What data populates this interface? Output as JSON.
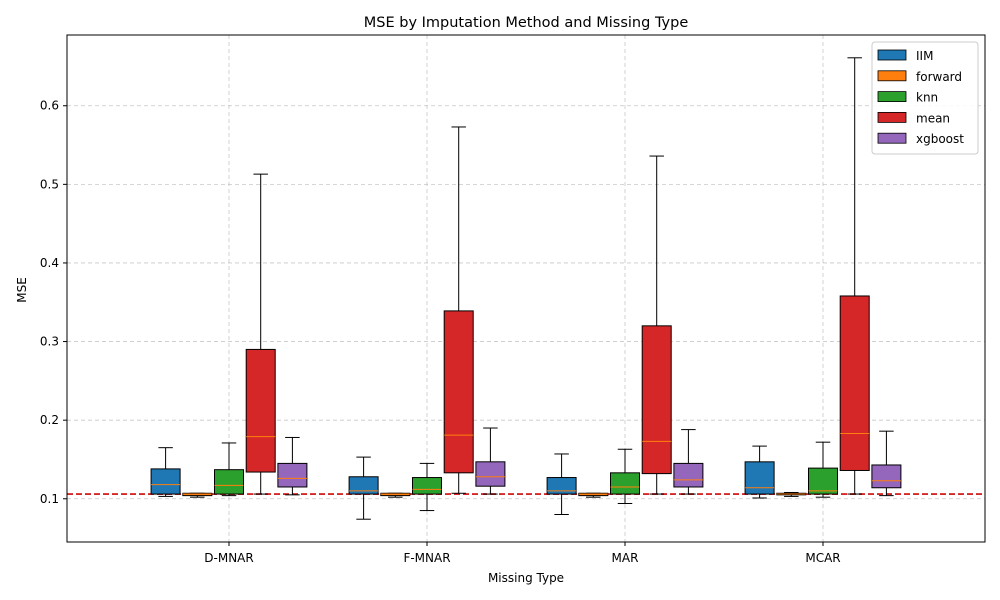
{
  "chart_data": {
    "type": "box",
    "title": "MSE by Imputation Method and Missing Type",
    "xlabel": "Missing Type",
    "ylabel": "MSE",
    "categories": [
      "D-MNAR",
      "F-MNAR",
      "MAR",
      "MCAR"
    ],
    "ylim": [
      0.045,
      0.69
    ],
    "yticks": [
      0.1,
      0.2,
      0.3,
      0.4,
      0.5,
      0.6
    ],
    "ytick_labels": [
      "0.1",
      "0.2",
      "0.3",
      "0.4",
      "0.5",
      "0.6"
    ],
    "grid": true,
    "legend_position": "top-right",
    "reference_line": {
      "y": 0.106,
      "color": "#d62728",
      "style": "dashed"
    },
    "median_color": "#ff7f0e",
    "series": [
      {
        "name": "IIM",
        "color": "#1f77b4",
        "boxes": [
          {
            "whislo": 0.103,
            "q1": 0.106,
            "med": 0.118,
            "q3": 0.138,
            "whishi": 0.165
          },
          {
            "whislo": 0.074,
            "q1": 0.106,
            "med": 0.11,
            "q3": 0.128,
            "whishi": 0.153
          },
          {
            "whislo": 0.08,
            "q1": 0.106,
            "med": 0.11,
            "q3": 0.127,
            "whishi": 0.157
          },
          {
            "whislo": 0.101,
            "q1": 0.106,
            "med": 0.114,
            "q3": 0.147,
            "whishi": 0.167
          }
        ]
      },
      {
        "name": "forward",
        "color": "#ff7f0e",
        "boxes": [
          {
            "whislo": 0.102,
            "q1": 0.104,
            "med": 0.106,
            "q3": 0.107,
            "whishi": 0.107
          },
          {
            "whislo": 0.102,
            "q1": 0.104,
            "med": 0.106,
            "q3": 0.107,
            "whishi": 0.107
          },
          {
            "whislo": 0.102,
            "q1": 0.104,
            "med": 0.106,
            "q3": 0.107,
            "whishi": 0.107
          },
          {
            "whislo": 0.103,
            "q1": 0.105,
            "med": 0.106,
            "q3": 0.107,
            "whishi": 0.108
          }
        ]
      },
      {
        "name": "knn",
        "color": "#2ca02c",
        "boxes": [
          {
            "whislo": 0.104,
            "q1": 0.106,
            "med": 0.117,
            "q3": 0.137,
            "whishi": 0.171
          },
          {
            "whislo": 0.085,
            "q1": 0.106,
            "med": 0.112,
            "q3": 0.127,
            "whishi": 0.145
          },
          {
            "whislo": 0.094,
            "q1": 0.106,
            "med": 0.115,
            "q3": 0.133,
            "whishi": 0.163
          },
          {
            "whislo": 0.102,
            "q1": 0.106,
            "med": 0.11,
            "q3": 0.139,
            "whishi": 0.172
          }
        ]
      },
      {
        "name": "mean",
        "color": "#d62728",
        "boxes": [
          {
            "whislo": 0.106,
            "q1": 0.134,
            "med": 0.179,
            "q3": 0.29,
            "whishi": 0.513
          },
          {
            "whislo": 0.107,
            "q1": 0.133,
            "med": 0.181,
            "q3": 0.339,
            "whishi": 0.573
          },
          {
            "whislo": 0.106,
            "q1": 0.132,
            "med": 0.173,
            "q3": 0.32,
            "whishi": 0.536
          },
          {
            "whislo": 0.106,
            "q1": 0.136,
            "med": 0.183,
            "q3": 0.358,
            "whishi": 0.661
          }
        ]
      },
      {
        "name": "xgboost",
        "color": "#9467bd",
        "boxes": [
          {
            "whislo": 0.105,
            "q1": 0.115,
            "med": 0.126,
            "q3": 0.145,
            "whishi": 0.178
          },
          {
            "whislo": 0.106,
            "q1": 0.116,
            "med": 0.128,
            "q3": 0.147,
            "whishi": 0.19
          },
          {
            "whislo": 0.106,
            "q1": 0.115,
            "med": 0.124,
            "q3": 0.145,
            "whishi": 0.188
          },
          {
            "whislo": 0.104,
            "q1": 0.114,
            "med": 0.123,
            "q3": 0.143,
            "whishi": 0.186
          }
        ]
      }
    ]
  }
}
